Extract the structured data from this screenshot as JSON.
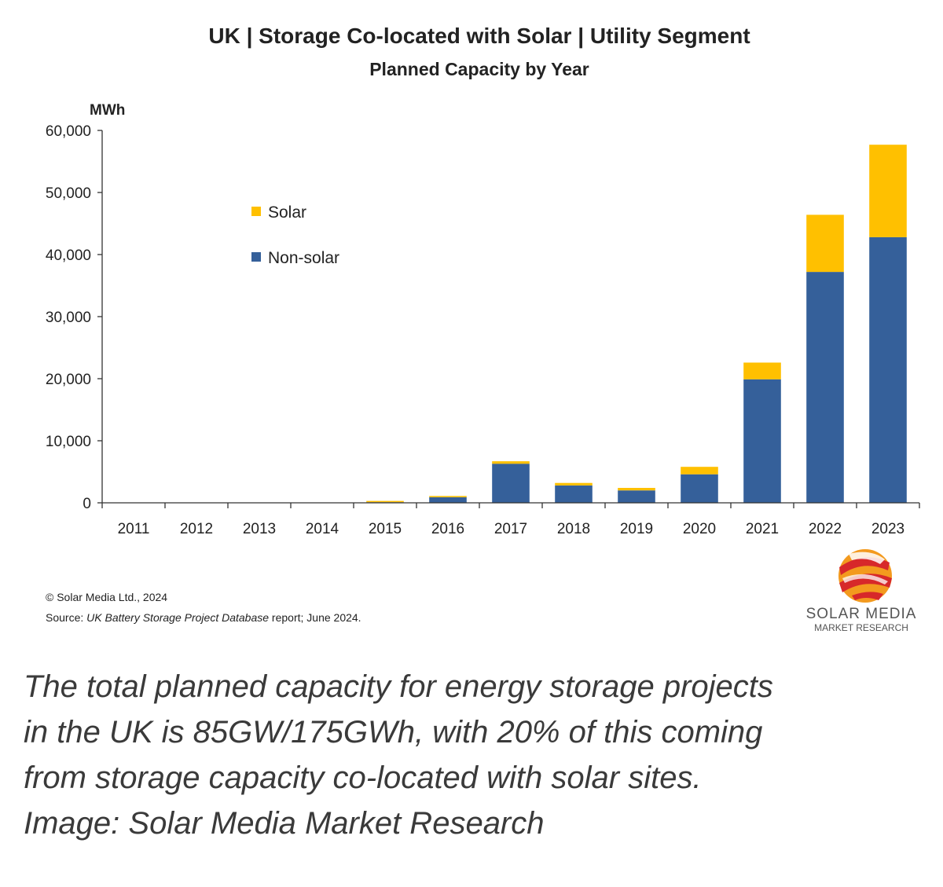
{
  "chart_data": {
    "type": "bar",
    "stacked": true,
    "title": "UK | Storage Co-located with Solar | Utility Segment",
    "subtitle": "Planned Capacity by Year",
    "ylabel": "MWh",
    "xlabel": "",
    "ylim": [
      0,
      60000
    ],
    "yticks": [
      0,
      10000,
      20000,
      30000,
      40000,
      50000,
      60000
    ],
    "ytick_labels": [
      "0",
      "10,000",
      "20,000",
      "30,000",
      "40,000",
      "50,000",
      "60,000"
    ],
    "categories": [
      "2011",
      "2012",
      "2013",
      "2014",
      "2015",
      "2016",
      "2017",
      "2018",
      "2019",
      "2020",
      "2021",
      "2022",
      "2023"
    ],
    "series": [
      {
        "name": "Non-solar",
        "color": "#35609A",
        "values": [
          0,
          0,
          0,
          0,
          100,
          900,
          6300,
          2800,
          2000,
          4600,
          19900,
          37200,
          42800
        ]
      },
      {
        "name": "Solar",
        "color": "#FFC000",
        "values": [
          0,
          0,
          0,
          0,
          200,
          200,
          400,
          400,
          400,
          1200,
          2700,
          9200,
          14900
        ]
      }
    ],
    "legend": {
      "position": "top-left",
      "entries": [
        "Solar",
        "Non-solar"
      ]
    },
    "grid": false
  },
  "footnote": {
    "copyright": "© Solar Media Ltd., 2024",
    "source_prefix": "Source: ",
    "source_title": "UK Battery Storage Project Database",
    "source_suffix": " report; June 2024."
  },
  "logo": {
    "line1": "SOLAR MEDIA",
    "line2": "MARKET RESEARCH"
  },
  "caption": {
    "lines": [
      "The total planned capacity for energy storage projects",
      "in the UK is 85GW/175GWh, with 20% of this coming",
      "from storage capacity co-located with solar sites.",
      "Image: Solar Media Market Research"
    ]
  }
}
